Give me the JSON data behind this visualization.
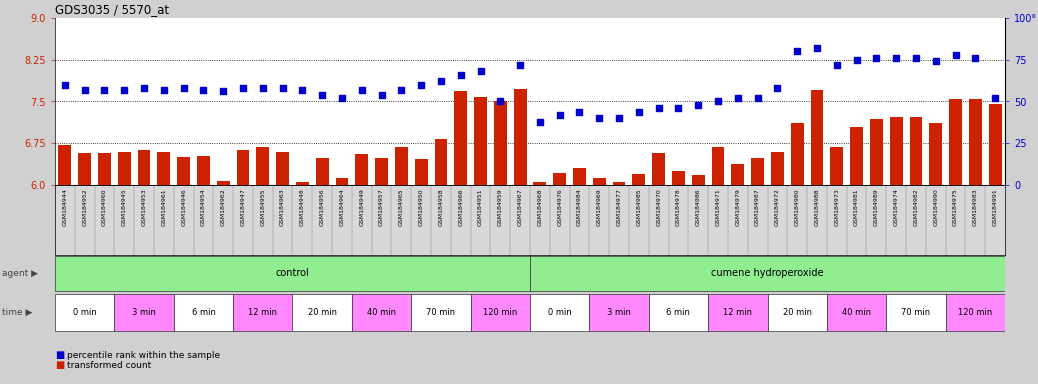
{
  "title": "GDS3035 / 5570_at",
  "samples": [
    "GSM184944",
    "GSM184952",
    "GSM184960",
    "GSM184945",
    "GSM184953",
    "GSM184961",
    "GSM184946",
    "GSM184954",
    "GSM184962",
    "GSM184947",
    "GSM184955",
    "GSM184963",
    "GSM184948",
    "GSM184956",
    "GSM184964",
    "GSM184949",
    "GSM184957",
    "GSM184965",
    "GSM184950",
    "GSM184958",
    "GSM184966",
    "GSM184951",
    "GSM184959",
    "GSM184967",
    "GSM184968",
    "GSM184976",
    "GSM184984",
    "GSM184969",
    "GSM184977",
    "GSM184985",
    "GSM184970",
    "GSM184978",
    "GSM184986",
    "GSM184971",
    "GSM184979",
    "GSM184987",
    "GSM184972",
    "GSM184980",
    "GSM184988",
    "GSM184973",
    "GSM184981",
    "GSM184989",
    "GSM184974",
    "GSM184982",
    "GSM184990",
    "GSM184975",
    "GSM184983",
    "GSM184991"
  ],
  "bar_values": [
    6.72,
    6.58,
    6.58,
    6.6,
    6.62,
    6.6,
    6.5,
    6.52,
    6.08,
    6.62,
    6.68,
    6.6,
    6.06,
    6.48,
    6.12,
    6.56,
    6.48,
    6.68,
    6.46,
    6.82,
    7.68,
    7.58,
    7.5,
    7.72,
    6.05,
    6.22,
    6.3,
    6.12,
    6.05,
    6.2,
    6.58,
    6.25,
    6.18,
    6.68,
    6.38,
    6.48,
    6.6,
    7.12,
    7.7,
    6.68,
    7.05,
    7.18,
    7.22,
    7.22,
    7.12,
    7.55,
    7.55,
    7.45
  ],
  "percentile_values": [
    60,
    57,
    57,
    57,
    58,
    57,
    58,
    57,
    56,
    58,
    58,
    58,
    57,
    54,
    52,
    57,
    54,
    57,
    60,
    62,
    66,
    68,
    50,
    72,
    38,
    42,
    44,
    40,
    40,
    44,
    46,
    46,
    48,
    50,
    52,
    52,
    58,
    80,
    82,
    72,
    75,
    76,
    76,
    76,
    74,
    78,
    76,
    52
  ],
  "ylim_left": [
    6.0,
    9.0
  ],
  "ylim_right": [
    0,
    100
  ],
  "yticks_left": [
    6.0,
    6.75,
    7.5,
    8.25,
    9.0
  ],
  "yticks_right": [
    0,
    25,
    50,
    75,
    100
  ],
  "bar_color": "#cc2200",
  "dot_color": "#0000cc",
  "strip_bg": "#d8d8d8",
  "plot_bg": "#ffffff",
  "agent_groups": [
    {
      "label": "control",
      "start": 0,
      "end": 23,
      "color": "#90ee90"
    },
    {
      "label": "cumene hydroperoxide",
      "start": 24,
      "end": 47,
      "color": "#90ee90"
    }
  ],
  "time_groups": [
    {
      "label": "0 min",
      "start": 0,
      "end": 2,
      "color": "#ffffff"
    },
    {
      "label": "3 min",
      "start": 3,
      "end": 5,
      "color": "#ff88ff"
    },
    {
      "label": "6 min",
      "start": 6,
      "end": 8,
      "color": "#ffffff"
    },
    {
      "label": "12 min",
      "start": 9,
      "end": 11,
      "color": "#ff88ff"
    },
    {
      "label": "20 min",
      "start": 12,
      "end": 14,
      "color": "#ffffff"
    },
    {
      "label": "40 min",
      "start": 15,
      "end": 17,
      "color": "#ff88ff"
    },
    {
      "label": "70 min",
      "start": 18,
      "end": 20,
      "color": "#ffffff"
    },
    {
      "label": "120 min",
      "start": 21,
      "end": 23,
      "color": "#ff88ff"
    },
    {
      "label": "0 min",
      "start": 24,
      "end": 26,
      "color": "#ffffff"
    },
    {
      "label": "3 min",
      "start": 27,
      "end": 29,
      "color": "#ff88ff"
    },
    {
      "label": "6 min",
      "start": 30,
      "end": 32,
      "color": "#ffffff"
    },
    {
      "label": "12 min",
      "start": 33,
      "end": 35,
      "color": "#ff88ff"
    },
    {
      "label": "20 min",
      "start": 36,
      "end": 38,
      "color": "#ffffff"
    },
    {
      "label": "40 min",
      "start": 39,
      "end": 41,
      "color": "#ff88ff"
    },
    {
      "label": "70 min",
      "start": 42,
      "end": 44,
      "color": "#ffffff"
    },
    {
      "label": "120 min",
      "start": 45,
      "end": 47,
      "color": "#ff88ff"
    }
  ]
}
